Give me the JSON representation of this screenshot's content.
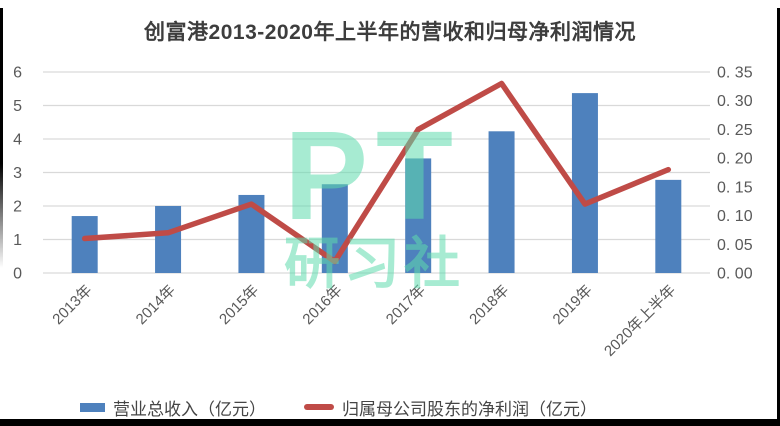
{
  "chart_data": {
    "type": "bar+line",
    "title": "创富港2013-2020年上半年的营收和归母净利润情况",
    "categories": [
      "2013年",
      "2014年",
      "2015年",
      "2016年",
      "2017年",
      "2018年",
      "2019年",
      "2020年上半年"
    ],
    "series": [
      {
        "name": "营业总收入（亿元）",
        "kind": "bar",
        "axis": "left",
        "color": "#4e81bd",
        "values": [
          1.7,
          2.0,
          2.33,
          2.65,
          3.42,
          4.23,
          5.37,
          2.78
        ]
      },
      {
        "name": "归属母公司股东的净利润（亿元）",
        "kind": "line",
        "axis": "right",
        "color": "#bf4b47",
        "values": [
          0.06,
          0.07,
          0.12,
          0.02,
          0.25,
          0.33,
          0.12,
          0.18
        ]
      }
    ],
    "left_axis": {
      "min": 0,
      "max": 6,
      "step": 1,
      "ticks": [
        "0",
        "1",
        "2",
        "3",
        "4",
        "5",
        "6"
      ]
    },
    "right_axis": {
      "min": 0,
      "max": 0.35,
      "step": 0.05,
      "ticks": [
        "0. 00",
        "0. 05",
        "0. 10",
        "0. 15",
        "0. 20",
        "0. 25",
        "0. 30",
        "0. 35"
      ]
    },
    "grid": true,
    "gridline_color": "#d9d9d9",
    "axis_text_color": "#595959",
    "legend_position": "bottom",
    "xlabel": "",
    "ylabel_left": "",
    "ylabel_right": ""
  },
  "watermark": {
    "line1": "PT",
    "line2": "研习社",
    "color": "rgba(94,219,173,0.55)"
  },
  "frame": {
    "edge_color": "#000000",
    "background": "#ffffff"
  }
}
